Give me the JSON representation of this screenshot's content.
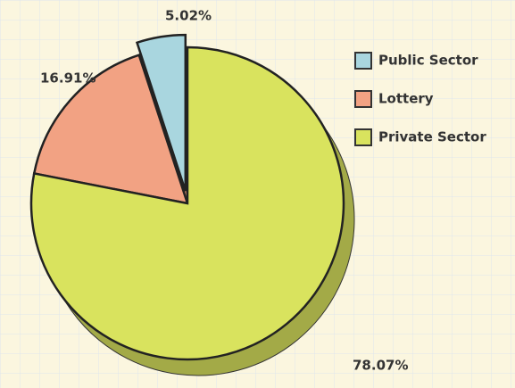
{
  "chart_data": {
    "type": "pie",
    "categories": [
      "Public Sector",
      "Lottery",
      "Private Sector"
    ],
    "values": [
      5.02,
      16.91,
      78.07
    ],
    "value_labels": [
      "5.02%",
      "16.91%",
      "78.07%"
    ],
    "colors": [
      "#a9d6df",
      "#f2a283",
      "#d9e35e"
    ],
    "legend": "right"
  }
}
